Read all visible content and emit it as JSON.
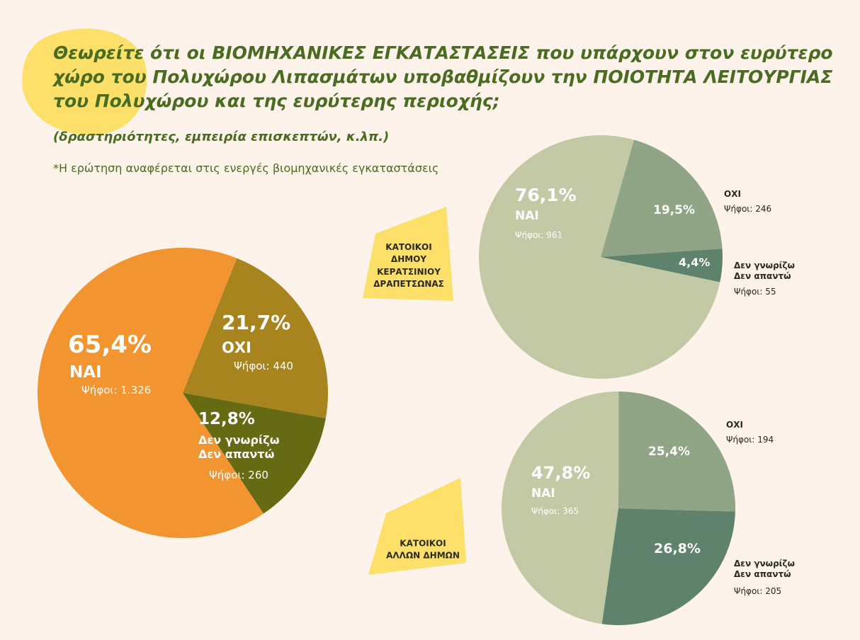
{
  "title": "Θεωρείτε ότι οι ΒΙΟΜΗΧΑΝΙΚΕΣ ΕΓΚΑΤΑΣΤΑΣΕΙΣ που υπάρχουν στον ευρύτερο χώρο του Πολυχώρου Λιπασμάτων υποβαθμίζουν την ΠΟΙΟΤΗΤΑ ΛΕΙΤΟΥΡΓΙΑΣ του Πολυχώρου και της ευρύτερης περιοχής;",
  "subtitle": "(δραστηριότητες, εμπειρία επισκεπτών, κ.λπ.)",
  "note": "*Η ερώτηση αναφέρεται στις ενεργές βιομηχανικές εγκαταστάσεις",
  "chart_data": [
    {
      "type": "pie",
      "categories": [
        "ΝΑΙ",
        "ΟΧΙ",
        "Δεν γνωρίζω\nΔεν απαντώ"
      ],
      "values": [
        65.4,
        21.7,
        12.8
      ],
      "value_labels": [
        "65,4%",
        "21,7%",
        "12,8%"
      ],
      "vote_labels": [
        "Ψήφοι: 1.326",
        "Ψήφοι: 440",
        "Ψήφοι: 260"
      ],
      "colors": [
        "#f29531",
        "#a8841e",
        "#666a12"
      ]
    },
    {
      "type": "pie",
      "label": "ΚΑΤΟΙΚΟΙ\nΔΗΜΟΥ\nΚΕΡΑΤΣΙΝΙΟΥ\nΔΡΑΠΕΤΣΩΝΑΣ",
      "categories": [
        "ΝΑΙ",
        "ΟΧΙ",
        "Δεν γνωρίζω\nΔεν απαντώ"
      ],
      "values": [
        76.1,
        19.5,
        4.4
      ],
      "value_labels": [
        "76,1%",
        "19,5%",
        "4,4%"
      ],
      "vote_labels": [
        "Ψήφοι: 961",
        "Ψήφοι: 246",
        "Ψήφοι: 55"
      ],
      "colors": [
        "#c4c9a5",
        "#8fa585",
        "#5e826c"
      ]
    },
    {
      "type": "pie",
      "label": "ΚΑΤΟΙΚΟΙ\nΑΛΛΩΝ ΔΗΜΩΝ",
      "categories": [
        "ΝΑΙ",
        "ΟΧΙ",
        "Δεν γνωρίζω\nΔεν απαντώ"
      ],
      "values": [
        47.8,
        25.4,
        26.8
      ],
      "value_labels": [
        "47,8%",
        "25,4%",
        "26,8%"
      ],
      "vote_labels": [
        "Ψήφοι: 365",
        "Ψήφοι: 194",
        "Ψήφοι: 205"
      ],
      "colors": [
        "#c4c9a5",
        "#8fa585",
        "#5e826c"
      ]
    }
  ]
}
